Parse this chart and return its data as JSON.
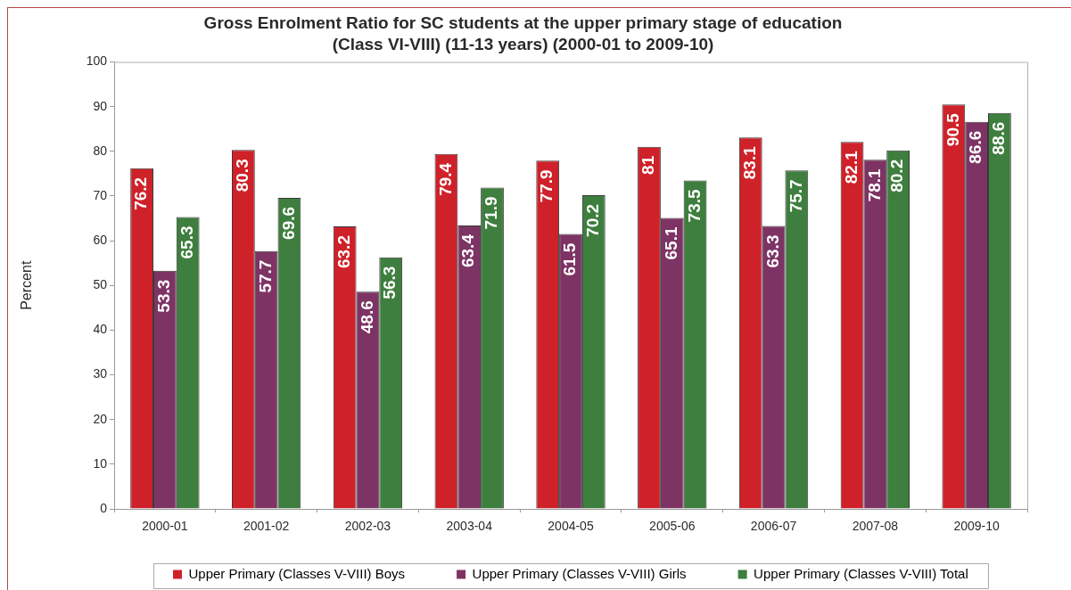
{
  "chart_data": {
    "type": "bar",
    "title": "Gross Enrolment Ratio for SC students at the upper primary stage of education\n(Class VI-VIII) (11-13 years) (2000-01 to 2009-10)",
    "ylabel": "Percent",
    "categories": [
      "2000-01",
      "2001-02",
      "2002-03",
      "2003-04",
      "2004-05",
      "2005-06",
      "2006-07",
      "2007-08",
      "2009-10"
    ],
    "series": [
      {
        "name": "Upper Primary (Classes V-VIII) Boys",
        "color": "#cf2129",
        "values": [
          76.2,
          80.3,
          63.2,
          79.4,
          77.9,
          81,
          83.1,
          82.1,
          90.5
        ]
      },
      {
        "name": "Upper Primary (Classes V-VIII) Girls",
        "color": "#7d3464",
        "values": [
          53.3,
          57.7,
          48.6,
          63.4,
          61.5,
          65.1,
          63.3,
          78.1,
          86.6
        ]
      },
      {
        "name": "Upper Primary (Classes V-VIII) Total",
        "color": "#3e7e3e",
        "values": [
          65.3,
          69.6,
          56.3,
          71.9,
          70.2,
          73.5,
          75.7,
          80.2,
          88.6
        ]
      }
    ],
    "ylim": [
      0,
      100
    ],
    "yticks": [
      0,
      10,
      20,
      30,
      40,
      50,
      60,
      70,
      80,
      90,
      100
    ],
    "legend": "bottom",
    "data_labels": true
  }
}
